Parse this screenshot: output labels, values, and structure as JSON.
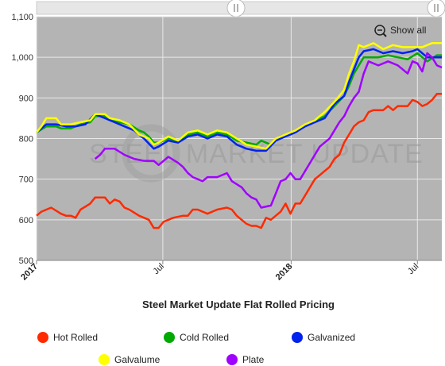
{
  "chart_data": {
    "type": "line",
    "title": "Steel Market Update Flat Rolled Pricing",
    "watermark": "STEEL MARKET UPDATE",
    "show_all_label": "Show all",
    "ylim": [
      500,
      1100
    ],
    "y_ticks": [
      {
        "value": 500,
        "label": "500"
      },
      {
        "value": 600,
        "label": "600"
      },
      {
        "value": 700,
        "label": "700"
      },
      {
        "value": 800,
        "label": "800"
      },
      {
        "value": 900,
        "label": "900"
      },
      {
        "value": 1000,
        "label": "1,000"
      },
      {
        "value": 1100,
        "label": "1,100"
      }
    ],
    "xlim": [
      "2017-01-01",
      "2018-08-05"
    ],
    "x_ticks": [
      {
        "date": "2017-01-01",
        "label": "2017",
        "major": true
      },
      {
        "date": "2017-07-01",
        "label": "Jul",
        "major": false
      },
      {
        "date": "2018-01-01",
        "label": "2018",
        "major": true
      },
      {
        "date": "2018-07-01",
        "label": "Jul",
        "major": false
      }
    ],
    "grid": true,
    "legend_position": "bottom",
    "background_color": "#b4b4b4",
    "series": [
      {
        "name": "Hot Rolled",
        "color": "#ff2a00",
        "points": [
          [
            "2017-01-01",
            610
          ],
          [
            "2017-01-08",
            620
          ],
          [
            "2017-01-22",
            630
          ],
          [
            "2017-02-05",
            615
          ],
          [
            "2017-02-12",
            610
          ],
          [
            "2017-02-19",
            610
          ],
          [
            "2017-02-26",
            605
          ],
          [
            "2017-03-05",
            625
          ],
          [
            "2017-03-19",
            640
          ],
          [
            "2017-03-26",
            655
          ],
          [
            "2017-04-09",
            655
          ],
          [
            "2017-04-16",
            640
          ],
          [
            "2017-04-23",
            650
          ],
          [
            "2017-04-30",
            645
          ],
          [
            "2017-05-07",
            630
          ],
          [
            "2017-05-14",
            625
          ],
          [
            "2017-05-28",
            610
          ],
          [
            "2017-06-11",
            600
          ],
          [
            "2017-06-18",
            580
          ],
          [
            "2017-06-25",
            580
          ],
          [
            "2017-07-02",
            595
          ],
          [
            "2017-07-16",
            605
          ],
          [
            "2017-07-30",
            610
          ],
          [
            "2017-08-06",
            610
          ],
          [
            "2017-08-13",
            625
          ],
          [
            "2017-08-20",
            625
          ],
          [
            "2017-09-03",
            615
          ],
          [
            "2017-09-17",
            625
          ],
          [
            "2017-10-01",
            630
          ],
          [
            "2017-10-08",
            625
          ],
          [
            "2017-10-15",
            610
          ],
          [
            "2017-10-29",
            590
          ],
          [
            "2017-11-05",
            585
          ],
          [
            "2017-11-12",
            585
          ],
          [
            "2017-11-19",
            580
          ],
          [
            "2017-11-26",
            605
          ],
          [
            "2017-12-03",
            600
          ],
          [
            "2017-12-17",
            620
          ],
          [
            "2017-12-31",
            615
          ],
          [
            "2017-12-24",
            640
          ],
          [
            "2018-01-07",
            640
          ],
          [
            "2018-01-14",
            640
          ],
          [
            "2018-01-21",
            660
          ],
          [
            "2018-02-04",
            700
          ],
          [
            "2018-02-11",
            710
          ],
          [
            "2018-02-18",
            720
          ],
          [
            "2018-02-25",
            730
          ],
          [
            "2018-03-04",
            750
          ],
          [
            "2018-03-11",
            760
          ],
          [
            "2018-03-18",
            790
          ],
          [
            "2018-03-25",
            810
          ],
          [
            "2018-04-01",
            830
          ],
          [
            "2018-04-08",
            840
          ],
          [
            "2018-04-15",
            845
          ],
          [
            "2018-04-22",
            865
          ],
          [
            "2018-04-29",
            870
          ],
          [
            "2018-05-13",
            870
          ],
          [
            "2018-05-20",
            880
          ],
          [
            "2018-05-27",
            870
          ],
          [
            "2018-06-03",
            880
          ],
          [
            "2018-06-17",
            880
          ],
          [
            "2018-06-24",
            895
          ],
          [
            "2018-07-01",
            890
          ],
          [
            "2018-07-08",
            880
          ],
          [
            "2018-07-15",
            885
          ],
          [
            "2018-07-22",
            895
          ],
          [
            "2018-07-29",
            910
          ],
          [
            "2018-08-05",
            910
          ]
        ]
      },
      {
        "name": "Cold Rolled",
        "color": "#00aa00",
        "points": [
          [
            "2017-01-01",
            815
          ],
          [
            "2017-01-15",
            830
          ],
          [
            "2017-01-29",
            830
          ],
          [
            "2017-02-05",
            825
          ],
          [
            "2017-02-19",
            825
          ],
          [
            "2017-03-05",
            835
          ],
          [
            "2017-03-19",
            840
          ],
          [
            "2017-03-26",
            855
          ],
          [
            "2017-04-09",
            855
          ],
          [
            "2017-04-16",
            845
          ],
          [
            "2017-04-30",
            840
          ],
          [
            "2017-05-14",
            835
          ],
          [
            "2017-05-28",
            820
          ],
          [
            "2017-06-04",
            815
          ],
          [
            "2017-06-11",
            805
          ],
          [
            "2017-06-18",
            790
          ],
          [
            "2017-06-25",
            790
          ],
          [
            "2017-07-09",
            800
          ],
          [
            "2017-07-23",
            795
          ],
          [
            "2017-08-06",
            810
          ],
          [
            "2017-08-20",
            815
          ],
          [
            "2017-09-03",
            805
          ],
          [
            "2017-09-17",
            815
          ],
          [
            "2017-10-01",
            810
          ],
          [
            "2017-10-15",
            795
          ],
          [
            "2017-10-29",
            790
          ],
          [
            "2017-11-12",
            785
          ],
          [
            "2017-11-19",
            795
          ],
          [
            "2017-12-03",
            785
          ],
          [
            "2017-12-17",
            805
          ],
          [
            "2017-12-31",
            810
          ],
          [
            "2018-01-07",
            820
          ],
          [
            "2018-01-21",
            830
          ],
          [
            "2018-02-04",
            845
          ],
          [
            "2018-02-18",
            855
          ],
          [
            "2018-03-04",
            880
          ],
          [
            "2018-03-18",
            905
          ],
          [
            "2018-03-25",
            930
          ],
          [
            "2018-04-01",
            960
          ],
          [
            "2018-04-08",
            980
          ],
          [
            "2018-04-15",
            1000
          ],
          [
            "2018-05-06",
            1000
          ],
          [
            "2018-05-20",
            1005
          ],
          [
            "2018-06-03",
            1000
          ],
          [
            "2018-06-17",
            995
          ],
          [
            "2018-07-01",
            1010
          ],
          [
            "2018-07-15",
            990
          ],
          [
            "2018-07-29",
            1005
          ],
          [
            "2018-08-05",
            1005
          ]
        ]
      },
      {
        "name": "Galvanized",
        "color": "#0022ee",
        "points": [
          [
            "2017-01-01",
            815
          ],
          [
            "2017-01-15",
            835
          ],
          [
            "2017-01-29",
            835
          ],
          [
            "2017-02-12",
            830
          ],
          [
            "2017-02-26",
            830
          ],
          [
            "2017-03-12",
            835
          ],
          [
            "2017-03-26",
            860
          ],
          [
            "2017-04-09",
            850
          ],
          [
            "2017-04-23",
            840
          ],
          [
            "2017-05-07",
            830
          ],
          [
            "2017-05-21",
            820
          ],
          [
            "2017-06-04",
            800
          ],
          [
            "2017-06-18",
            775
          ],
          [
            "2017-06-25",
            780
          ],
          [
            "2017-07-09",
            795
          ],
          [
            "2017-07-23",
            790
          ],
          [
            "2017-08-06",
            805
          ],
          [
            "2017-08-20",
            810
          ],
          [
            "2017-09-03",
            800
          ],
          [
            "2017-09-17",
            810
          ],
          [
            "2017-10-01",
            805
          ],
          [
            "2017-10-15",
            785
          ],
          [
            "2017-10-29",
            775
          ],
          [
            "2017-11-12",
            770
          ],
          [
            "2017-11-26",
            770
          ],
          [
            "2017-12-10",
            795
          ],
          [
            "2017-12-24",
            805
          ],
          [
            "2018-01-07",
            815
          ],
          [
            "2018-01-21",
            830
          ],
          [
            "2018-02-04",
            840
          ],
          [
            "2018-02-18",
            850
          ],
          [
            "2018-03-04",
            885
          ],
          [
            "2018-03-18",
            905
          ],
          [
            "2018-03-25",
            940
          ],
          [
            "2018-04-01",
            970
          ],
          [
            "2018-04-08",
            1000
          ],
          [
            "2018-04-15",
            1015
          ],
          [
            "2018-04-29",
            1020
          ],
          [
            "2018-05-13",
            1010
          ],
          [
            "2018-05-27",
            1015
          ],
          [
            "2018-06-10",
            1010
          ],
          [
            "2018-06-24",
            1015
          ],
          [
            "2018-07-01",
            1020
          ],
          [
            "2018-07-15",
            1000
          ],
          [
            "2018-07-29",
            1000
          ],
          [
            "2018-08-05",
            1000
          ]
        ]
      },
      {
        "name": "Galvalume",
        "color": "#ffff00",
        "points": [
          [
            "2017-01-01",
            815
          ],
          [
            "2017-01-08",
            830
          ],
          [
            "2017-01-15",
            850
          ],
          [
            "2017-01-29",
            850
          ],
          [
            "2017-02-05",
            835
          ],
          [
            "2017-02-19",
            835
          ],
          [
            "2017-03-05",
            840
          ],
          [
            "2017-03-19",
            845
          ],
          [
            "2017-03-26",
            860
          ],
          [
            "2017-04-09",
            860
          ],
          [
            "2017-04-16",
            850
          ],
          [
            "2017-04-30",
            845
          ],
          [
            "2017-05-14",
            835
          ],
          [
            "2017-05-28",
            810
          ],
          [
            "2017-06-11",
            800
          ],
          [
            "2017-06-18",
            785
          ],
          [
            "2017-06-25",
            790
          ],
          [
            "2017-07-09",
            805
          ],
          [
            "2017-07-23",
            795
          ],
          [
            "2017-08-06",
            815
          ],
          [
            "2017-08-20",
            820
          ],
          [
            "2017-09-03",
            810
          ],
          [
            "2017-09-17",
            820
          ],
          [
            "2017-10-01",
            815
          ],
          [
            "2017-10-15",
            800
          ],
          [
            "2017-10-29",
            785
          ],
          [
            "2017-11-12",
            780
          ],
          [
            "2017-11-26",
            775
          ],
          [
            "2017-12-10",
            800
          ],
          [
            "2017-12-24",
            810
          ],
          [
            "2018-01-07",
            820
          ],
          [
            "2018-01-21",
            835
          ],
          [
            "2018-02-04",
            845
          ],
          [
            "2018-02-18",
            865
          ],
          [
            "2018-03-04",
            890
          ],
          [
            "2018-03-18",
            920
          ],
          [
            "2018-03-25",
            960
          ],
          [
            "2018-04-01",
            990
          ],
          [
            "2018-04-08",
            1030
          ],
          [
            "2018-04-15",
            1025
          ],
          [
            "2018-04-29",
            1035
          ],
          [
            "2018-05-13",
            1020
          ],
          [
            "2018-05-27",
            1030
          ],
          [
            "2018-06-10",
            1025
          ],
          [
            "2018-06-24",
            1025
          ],
          [
            "2018-07-08",
            1025
          ],
          [
            "2018-07-22",
            1035
          ],
          [
            "2018-08-05",
            1035
          ]
        ]
      },
      {
        "name": "Plate",
        "color": "#a000ff",
        "points": [
          [
            "2017-03-26",
            750
          ],
          [
            "2017-04-02",
            760
          ],
          [
            "2017-04-09",
            775
          ],
          [
            "2017-04-23",
            775
          ],
          [
            "2017-05-07",
            760
          ],
          [
            "2017-05-21",
            750
          ],
          [
            "2017-06-04",
            745
          ],
          [
            "2017-06-18",
            745
          ],
          [
            "2017-06-25",
            735
          ],
          [
            "2017-07-09",
            755
          ],
          [
            "2017-07-23",
            740
          ],
          [
            "2017-07-30",
            730
          ],
          [
            "2017-08-06",
            715
          ],
          [
            "2017-08-13",
            705
          ],
          [
            "2017-08-27",
            695
          ],
          [
            "2017-09-03",
            705
          ],
          [
            "2017-09-17",
            705
          ],
          [
            "2017-10-01",
            715
          ],
          [
            "2017-10-08",
            695
          ],
          [
            "2017-10-22",
            680
          ],
          [
            "2017-10-29",
            665
          ],
          [
            "2017-11-05",
            655
          ],
          [
            "2017-11-12",
            650
          ],
          [
            "2017-11-19",
            630
          ],
          [
            "2017-12-03",
            635
          ],
          [
            "2017-12-10",
            665
          ],
          [
            "2017-12-17",
            695
          ],
          [
            "2017-12-24",
            700
          ],
          [
            "2017-12-31",
            715
          ],
          [
            "2018-01-07",
            700
          ],
          [
            "2018-01-14",
            700
          ],
          [
            "2018-01-21",
            720
          ],
          [
            "2018-02-04",
            760
          ],
          [
            "2018-02-11",
            780
          ],
          [
            "2018-02-18",
            790
          ],
          [
            "2018-02-25",
            800
          ],
          [
            "2018-03-04",
            820
          ],
          [
            "2018-03-11",
            840
          ],
          [
            "2018-03-18",
            855
          ],
          [
            "2018-03-25",
            880
          ],
          [
            "2018-04-01",
            900
          ],
          [
            "2018-04-08",
            915
          ],
          [
            "2018-04-15",
            960
          ],
          [
            "2018-04-22",
            990
          ],
          [
            "2018-05-06",
            980
          ],
          [
            "2018-05-20",
            990
          ],
          [
            "2018-06-03",
            980
          ],
          [
            "2018-06-17",
            960
          ],
          [
            "2018-06-24",
            990
          ],
          [
            "2018-07-01",
            985
          ],
          [
            "2018-07-08",
            965
          ],
          [
            "2018-07-15",
            1010
          ],
          [
            "2018-07-22",
            1000
          ],
          [
            "2018-07-29",
            980
          ],
          [
            "2018-08-05",
            975
          ]
        ]
      }
    ]
  }
}
